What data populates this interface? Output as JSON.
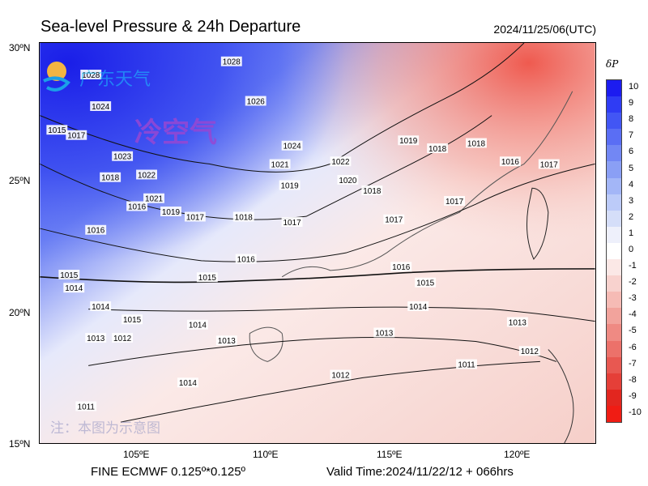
{
  "header": {
    "title": "Sea-level Pressure & 24h Departure",
    "datetime": "2024/11/25/06(UTC)"
  },
  "footer": {
    "model": "FINE ECMWF 0.125º*0.125º",
    "valid": "Valid Time:2024/11/22/12 + 066hrs"
  },
  "axes": {
    "lat_labels": [
      "30ºN",
      "25ºN",
      "20ºN",
      "15ºN"
    ],
    "lon_labels": [
      "105ºE",
      "110ºE",
      "115ºE",
      "120ºE"
    ]
  },
  "watermarks": {
    "brand": "广东天气",
    "cold_air": "冷空气",
    "note": "注：本图为示意图"
  },
  "colorbar": {
    "label": "δP",
    "levels": [
      "10",
      "9",
      "8",
      "7",
      "6",
      "5",
      "4",
      "3",
      "2",
      "1",
      "0",
      "-1",
      "-2",
      "-3",
      "-4",
      "-5",
      "-6",
      "-7",
      "-8",
      "-9",
      "-10"
    ],
    "colors": [
      "#1c1cf0",
      "#2f3cf4",
      "#4256f4",
      "#5a6ef4",
      "#7287f4",
      "#8a9ff5",
      "#a3b6f7",
      "#bccbf9",
      "#d5def9",
      "#eef0fb",
      "#ffffff",
      "#fbe8e6",
      "#f8d2ce",
      "#f6bbb5",
      "#f2a39c",
      "#ef8a83",
      "#ec716a",
      "#e85851",
      "#e53f38",
      "#e2261f",
      "#f01c14"
    ]
  },
  "contours": [
    {
      "label": "1028",
      "x": 102.2,
      "y": 29.0
    },
    {
      "label": "1028",
      "x": 108.0,
      "y": 29.5
    },
    {
      "label": "1024",
      "x": 102.6,
      "y": 27.8
    },
    {
      "label": "1026",
      "x": 109.0,
      "y": 28.0
    },
    {
      "label": "1024",
      "x": 110.5,
      "y": 26.3
    },
    {
      "label": "1023",
      "x": 103.5,
      "y": 25.9
    },
    {
      "label": "1022",
      "x": 104.5,
      "y": 25.2
    },
    {
      "label": "1022",
      "x": 112.5,
      "y": 25.7
    },
    {
      "label": "1021",
      "x": 110.0,
      "y": 25.6
    },
    {
      "label": "1020",
      "x": 112.8,
      "y": 25.0
    },
    {
      "label": "1019",
      "x": 115.3,
      "y": 26.5
    },
    {
      "label": "1018",
      "x": 116.5,
      "y": 26.2
    },
    {
      "label": "1018",
      "x": 118.1,
      "y": 26.4
    },
    {
      "label": "1017",
      "x": 101.6,
      "y": 26.7
    },
    {
      "label": "1016",
      "x": 119.5,
      "y": 25.7
    },
    {
      "label": "1017",
      "x": 121.1,
      "y": 25.6
    },
    {
      "label": "1015",
      "x": 100.8,
      "y": 26.9
    },
    {
      "label": "1018",
      "x": 103.0,
      "y": 25.1
    },
    {
      "label": "1021",
      "x": 104.8,
      "y": 24.3
    },
    {
      "label": "1019",
      "x": 105.5,
      "y": 23.8
    },
    {
      "label": "1016",
      "x": 104.1,
      "y": 24.0
    },
    {
      "label": "1017",
      "x": 106.5,
      "y": 23.6
    },
    {
      "label": "1018",
      "x": 108.5,
      "y": 23.6
    },
    {
      "label": "1017",
      "x": 110.5,
      "y": 23.4
    },
    {
      "label": "1019",
      "x": 110.4,
      "y": 24.8
    },
    {
      "label": "1018",
      "x": 113.8,
      "y": 24.6
    },
    {
      "label": "1017",
      "x": 114.7,
      "y": 23.5
    },
    {
      "label": "1017",
      "x": 117.2,
      "y": 24.2
    },
    {
      "label": "1016",
      "x": 102.4,
      "y": 23.1
    },
    {
      "label": "1016",
      "x": 108.6,
      "y": 22.0
    },
    {
      "label": "1016",
      "x": 115.0,
      "y": 21.7
    },
    {
      "label": "1015",
      "x": 107.0,
      "y": 21.3
    },
    {
      "label": "1015",
      "x": 116.0,
      "y": 21.1
    },
    {
      "label": "1014",
      "x": 101.5,
      "y": 20.9
    },
    {
      "label": "1015",
      "x": 101.3,
      "y": 21.4
    },
    {
      "label": "1014",
      "x": 102.6,
      "y": 20.2
    },
    {
      "label": "1015",
      "x": 103.9,
      "y": 19.7
    },
    {
      "label": "1014",
      "x": 106.6,
      "y": 19.5
    },
    {
      "label": "1014",
      "x": 115.7,
      "y": 20.2
    },
    {
      "label": "1013",
      "x": 102.4,
      "y": 19.0
    },
    {
      "label": "1012",
      "x": 103.5,
      "y": 19.0
    },
    {
      "label": "1013",
      "x": 107.8,
      "y": 18.9
    },
    {
      "label": "1013",
      "x": 114.3,
      "y": 19.2
    },
    {
      "label": "1013",
      "x": 119.8,
      "y": 19.6
    },
    {
      "label": "1012",
      "x": 120.3,
      "y": 18.5
    },
    {
      "label": "1012",
      "x": 112.5,
      "y": 17.6
    },
    {
      "label": "1011",
      "x": 117.7,
      "y": 18.0
    },
    {
      "label": "1014",
      "x": 106.2,
      "y": 17.3
    },
    {
      "label": "1011",
      "x": 102.0,
      "y": 16.4
    }
  ]
}
